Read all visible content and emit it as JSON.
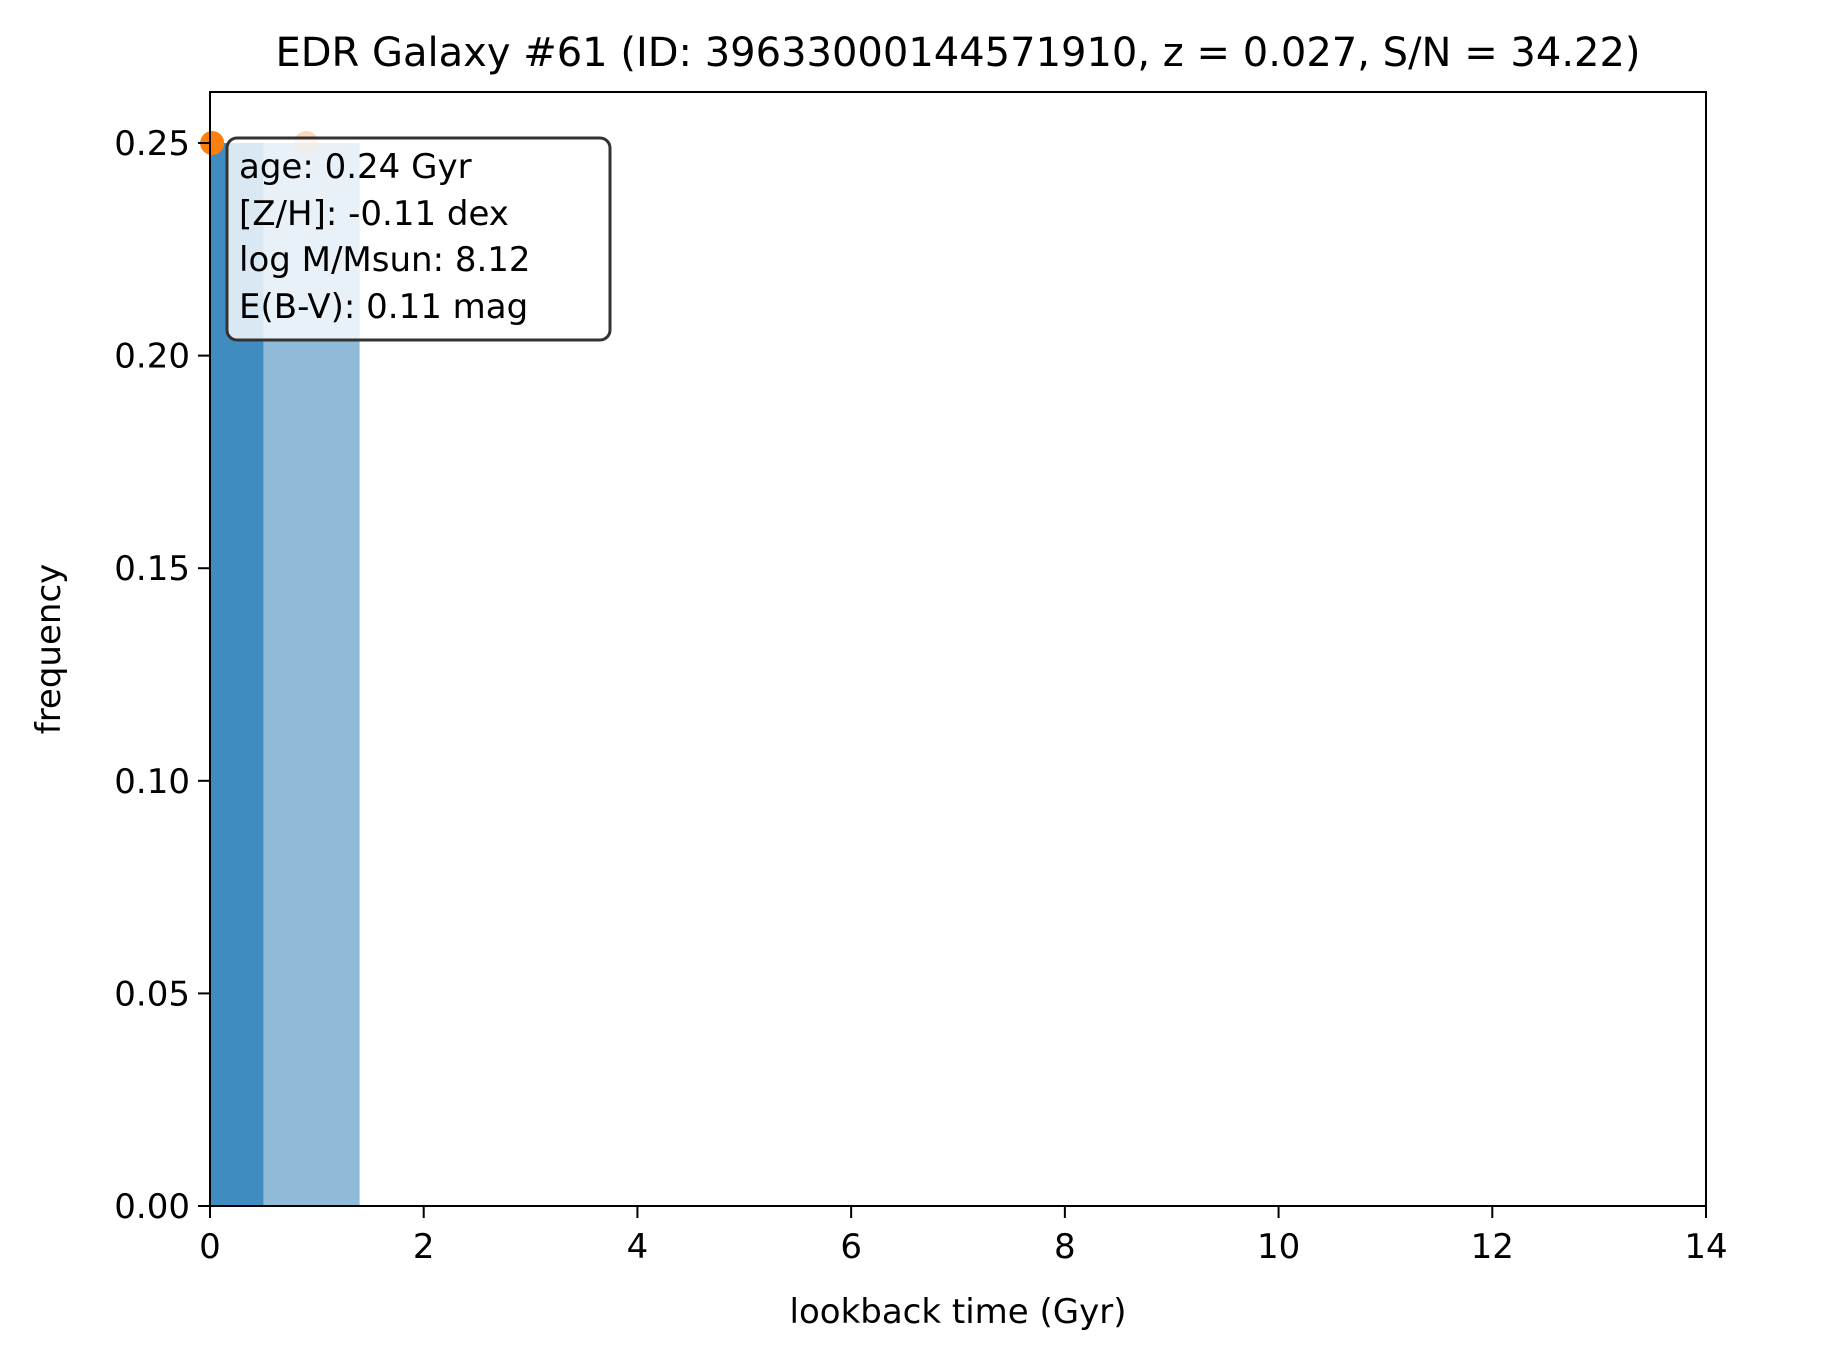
{
  "chart_data": {
    "type": "bar",
    "title": "EDR Galaxy #61 (ID: 39633000144571910, z = 0.027, S/N = 34.22)",
    "xlabel": "lookback time (Gyr)",
    "ylabel": "frequency",
    "xlim": [
      0,
      14
    ],
    "ylim": [
      0,
      0.262
    ],
    "x_ticks": [
      "0",
      "2",
      "4",
      "6",
      "8",
      "10",
      "12",
      "14"
    ],
    "y_ticks": [
      "0.00",
      "0.05",
      "0.10",
      "0.15",
      "0.20",
      "0.25"
    ],
    "x_tick_values": [
      0,
      2,
      4,
      6,
      8,
      10,
      12,
      14
    ],
    "y_tick_values": [
      0,
      0.05,
      0.1,
      0.15,
      0.2,
      0.25
    ],
    "grid": false,
    "series": [
      {
        "color": "#1f77b4",
        "opacity": 0.85,
        "bars": [
          {
            "x0": 0.0,
            "x1": 0.5,
            "value": 0.25
          }
        ],
        "marker": {
          "x": 0.02,
          "y": 0.25,
          "color": "#ff7f0e",
          "opacity": 1.0
        }
      },
      {
        "color": "#1f77b4",
        "opacity": 0.5,
        "bars": [
          {
            "x0": 0.5,
            "x1": 1.4,
            "value": 0.25
          }
        ],
        "marker": {
          "x": 0.9,
          "y": 0.25,
          "color": "#ff7f0e",
          "opacity": 0.3
        }
      }
    ],
    "annotation": {
      "placement": "top-left",
      "lines": [
        "age: 0.24 Gyr",
        "[Z/H]: -0.11 dex",
        "log M/Msun: 8.12",
        "E(B-V): 0.11 mag"
      ]
    }
  }
}
